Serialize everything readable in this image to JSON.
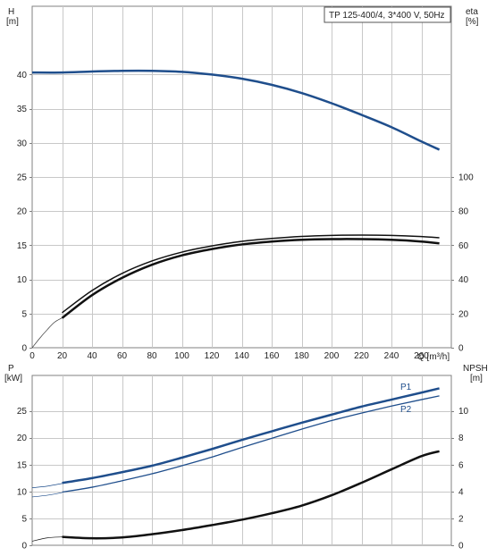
{
  "chart_data": [
    {
      "type": "line",
      "title": "TP 125-400/4, 3*400 V, 50Hz",
      "x": {
        "label": "Q [m³/h]",
        "range": [
          0,
          280
        ],
        "ticks": [
          0,
          20,
          40,
          60,
          80,
          100,
          120,
          140,
          160,
          180,
          200,
          220,
          240,
          260
        ]
      },
      "y_left": {
        "label_top": "H",
        "label_unit": "[m]",
        "range": [
          0,
          50
        ],
        "ticks": [
          0,
          5,
          10,
          15,
          20,
          25,
          30,
          35,
          40
        ]
      },
      "y_right": {
        "label_top": "eta",
        "label_unit": "[%]",
        "range": [
          0,
          200
        ],
        "ticks": [
          0,
          20,
          40,
          60,
          80,
          100
        ]
      },
      "grid": true,
      "series": [
        {
          "id": "H",
          "axis": "left",
          "color": "#1f4e8c",
          "width": 2.5,
          "x": [
            0,
            20,
            40,
            60,
            80,
            100,
            120,
            140,
            160,
            180,
            200,
            220,
            240,
            260,
            272
          ],
          "y": [
            40.3,
            40.3,
            40.45,
            40.55,
            40.55,
            40.4,
            40.0,
            39.4,
            38.5,
            37.3,
            35.8,
            34.1,
            32.3,
            30.2,
            29.0
          ]
        },
        {
          "id": "eta_thin_extension",
          "axis": "right",
          "color": "#333333",
          "width": 0.7,
          "x": [
            0,
            5,
            10,
            15,
            20
          ],
          "y": [
            0,
            5.5,
            10.5,
            15,
            17.5
          ]
        },
        {
          "id": "eta_upper",
          "axis": "right",
          "color": "#111111",
          "width": 1.5,
          "x": [
            20,
            40,
            60,
            80,
            100,
            120,
            140,
            160,
            180,
            200,
            220,
            240,
            260,
            272
          ],
          "y": [
            20.5,
            33.5,
            43.5,
            50.8,
            56,
            59.6,
            62.3,
            64,
            65.2,
            65.8,
            66,
            65.8,
            65.1,
            64.4
          ]
        },
        {
          "id": "eta_lower",
          "axis": "right",
          "color": "#111111",
          "width": 2.5,
          "x": [
            20,
            40,
            60,
            80,
            100,
            120,
            140,
            160,
            180,
            200,
            220,
            240,
            260,
            272
          ],
          "y": [
            17.4,
            30.8,
            40.9,
            48.6,
            54.1,
            57.8,
            60.5,
            62.2,
            63.2,
            63.6,
            63.6,
            63.2,
            62.2,
            61.1
          ]
        }
      ]
    },
    {
      "type": "line",
      "x": {
        "label": "",
        "range": [
          0,
          280
        ]
      },
      "y_left": {
        "label_top": "P",
        "label_unit": "[kW]",
        "range": [
          0,
          31.6
        ],
        "ticks": [
          0,
          5,
          10,
          15,
          20,
          25
        ]
      },
      "y_right": {
        "label_top": "NPSH",
        "label_unit": "[m]",
        "range": [
          0,
          12.64
        ],
        "ticks": [
          0,
          2,
          4,
          6,
          8,
          10
        ]
      },
      "grid": true,
      "series": [
        {
          "id": "P1_ext",
          "axis": "left",
          "color": "#1f4e8c",
          "width": 0.7,
          "x": [
            0,
            10,
            20
          ],
          "y": [
            10.7,
            11.0,
            11.5
          ]
        },
        {
          "id": "P2_ext",
          "axis": "left",
          "color": "#1f4e8c",
          "width": 0.7,
          "x": [
            0,
            10,
            20
          ],
          "y": [
            9.0,
            9.3,
            9.8
          ]
        },
        {
          "id": "P1",
          "name": "P1",
          "axis": "left",
          "color": "#1f4e8c",
          "width": 2.5,
          "x": [
            20,
            40,
            60,
            80,
            100,
            120,
            140,
            160,
            180,
            200,
            220,
            240,
            260,
            272
          ],
          "y": [
            11.6,
            12.5,
            13.6,
            14.8,
            16.3,
            17.9,
            19.6,
            21.2,
            22.8,
            24.3,
            25.8,
            27.1,
            28.4,
            29.2
          ]
        },
        {
          "id": "P2",
          "name": "P2",
          "axis": "left",
          "color": "#1f4e8c",
          "width": 1.3,
          "x": [
            20,
            40,
            60,
            80,
            100,
            120,
            140,
            160,
            180,
            200,
            220,
            240,
            260,
            272
          ],
          "y": [
            9.9,
            10.8,
            12.0,
            13.3,
            14.8,
            16.4,
            18.2,
            19.9,
            21.6,
            23.2,
            24.6,
            25.9,
            27.1,
            27.8
          ]
        },
        {
          "id": "NPSH_ext",
          "axis": "right",
          "color": "#111111",
          "width": 0.7,
          "x": [
            0,
            10,
            20
          ],
          "y": [
            0.3,
            0.55,
            0.62
          ]
        },
        {
          "id": "NPSH",
          "axis": "right",
          "color": "#111111",
          "width": 2.5,
          "x": [
            20,
            40,
            60,
            80,
            100,
            120,
            140,
            160,
            180,
            200,
            220,
            240,
            260,
            272
          ],
          "y": [
            0.62,
            0.52,
            0.58,
            0.82,
            1.13,
            1.5,
            1.9,
            2.38,
            2.95,
            3.72,
            4.65,
            5.65,
            6.63,
            7.0
          ]
        }
      ]
    }
  ]
}
